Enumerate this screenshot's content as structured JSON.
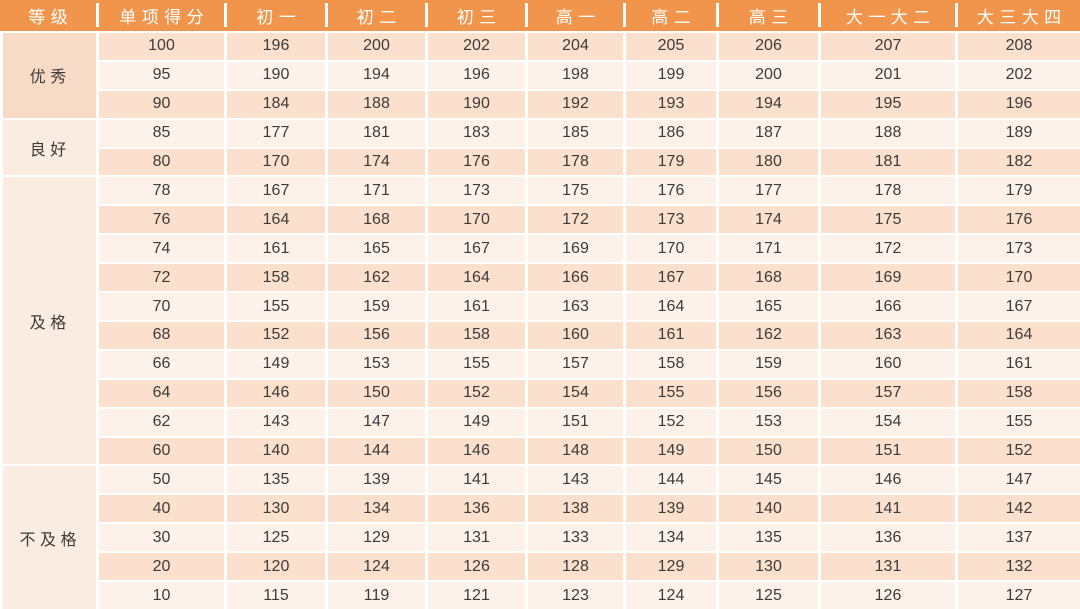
{
  "colors": {
    "header_bg": "#F0954B",
    "header_text": "#FFFFFF",
    "band_dark": "#FAE0CD",
    "band_light": "#FDF2E9",
    "label_excellent_bg": "#F7DBC7",
    "label_other_bg": "#FBECE1",
    "text": "#3E3A39",
    "background": "#FFFFFF"
  },
  "chart_data": {
    "type": "table",
    "title": "",
    "columns": [
      "等级",
      "单项得分",
      "初一",
      "初二",
      "初三",
      "高一",
      "高二",
      "高三",
      "大一大二",
      "大三大四"
    ],
    "groups": [
      {
        "label": "优秀",
        "rows": [
          [
            100,
            196,
            200,
            202,
            204,
            205,
            206,
            207,
            208
          ],
          [
            95,
            190,
            194,
            196,
            198,
            199,
            200,
            201,
            202
          ],
          [
            90,
            184,
            188,
            190,
            192,
            193,
            194,
            195,
            196
          ]
        ]
      },
      {
        "label": "良好",
        "rows": [
          [
            85,
            177,
            181,
            183,
            185,
            186,
            187,
            188,
            189
          ],
          [
            80,
            170,
            174,
            176,
            178,
            179,
            180,
            181,
            182
          ]
        ]
      },
      {
        "label": "及格",
        "rows": [
          [
            78,
            167,
            171,
            173,
            175,
            176,
            177,
            178,
            179
          ],
          [
            76,
            164,
            168,
            170,
            172,
            173,
            174,
            175,
            176
          ],
          [
            74,
            161,
            165,
            167,
            169,
            170,
            171,
            172,
            173
          ],
          [
            72,
            158,
            162,
            164,
            166,
            167,
            168,
            169,
            170
          ],
          [
            70,
            155,
            159,
            161,
            163,
            164,
            165,
            166,
            167
          ],
          [
            68,
            152,
            156,
            158,
            160,
            161,
            162,
            163,
            164
          ],
          [
            66,
            149,
            153,
            155,
            157,
            158,
            159,
            160,
            161
          ],
          [
            64,
            146,
            150,
            152,
            154,
            155,
            156,
            157,
            158
          ],
          [
            62,
            143,
            147,
            149,
            151,
            152,
            153,
            154,
            155
          ],
          [
            60,
            140,
            144,
            146,
            148,
            149,
            150,
            151,
            152
          ]
        ]
      },
      {
        "label": "不及格",
        "rows": [
          [
            50,
            135,
            139,
            141,
            143,
            144,
            145,
            146,
            147
          ],
          [
            40,
            130,
            134,
            136,
            138,
            139,
            140,
            141,
            142
          ],
          [
            30,
            125,
            129,
            131,
            133,
            134,
            135,
            136,
            137
          ],
          [
            20,
            120,
            124,
            126,
            128,
            129,
            130,
            131,
            132
          ],
          [
            10,
            115,
            119,
            121,
            123,
            124,
            125,
            126,
            127
          ]
        ]
      }
    ]
  }
}
